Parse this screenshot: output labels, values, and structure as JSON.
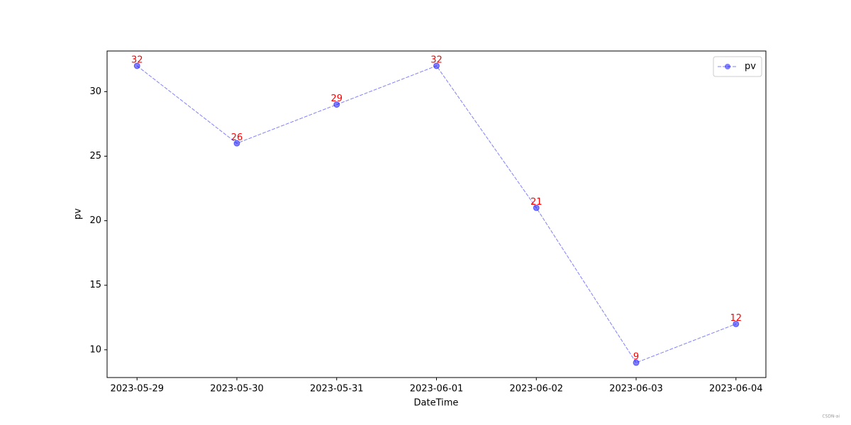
{
  "chart_data": {
    "type": "line",
    "x": [
      "2023-05-29",
      "2023-05-30",
      "2023-05-31",
      "2023-06-01",
      "2023-06-02",
      "2023-06-03",
      "2023-06-04"
    ],
    "series": [
      {
        "name": "pv",
        "color": "#0000ff",
        "values": [
          32,
          26,
          29,
          32,
          21,
          9,
          12
        ]
      }
    ],
    "xlabel": "DateTime",
    "ylabel": "pv",
    "ylim": [
      7.85,
      33.15
    ],
    "yticks": [
      10,
      15,
      20,
      25,
      30
    ],
    "legend": "upper right",
    "value_label_color": "#ff0000",
    "watermark": "CSDN-ai"
  }
}
